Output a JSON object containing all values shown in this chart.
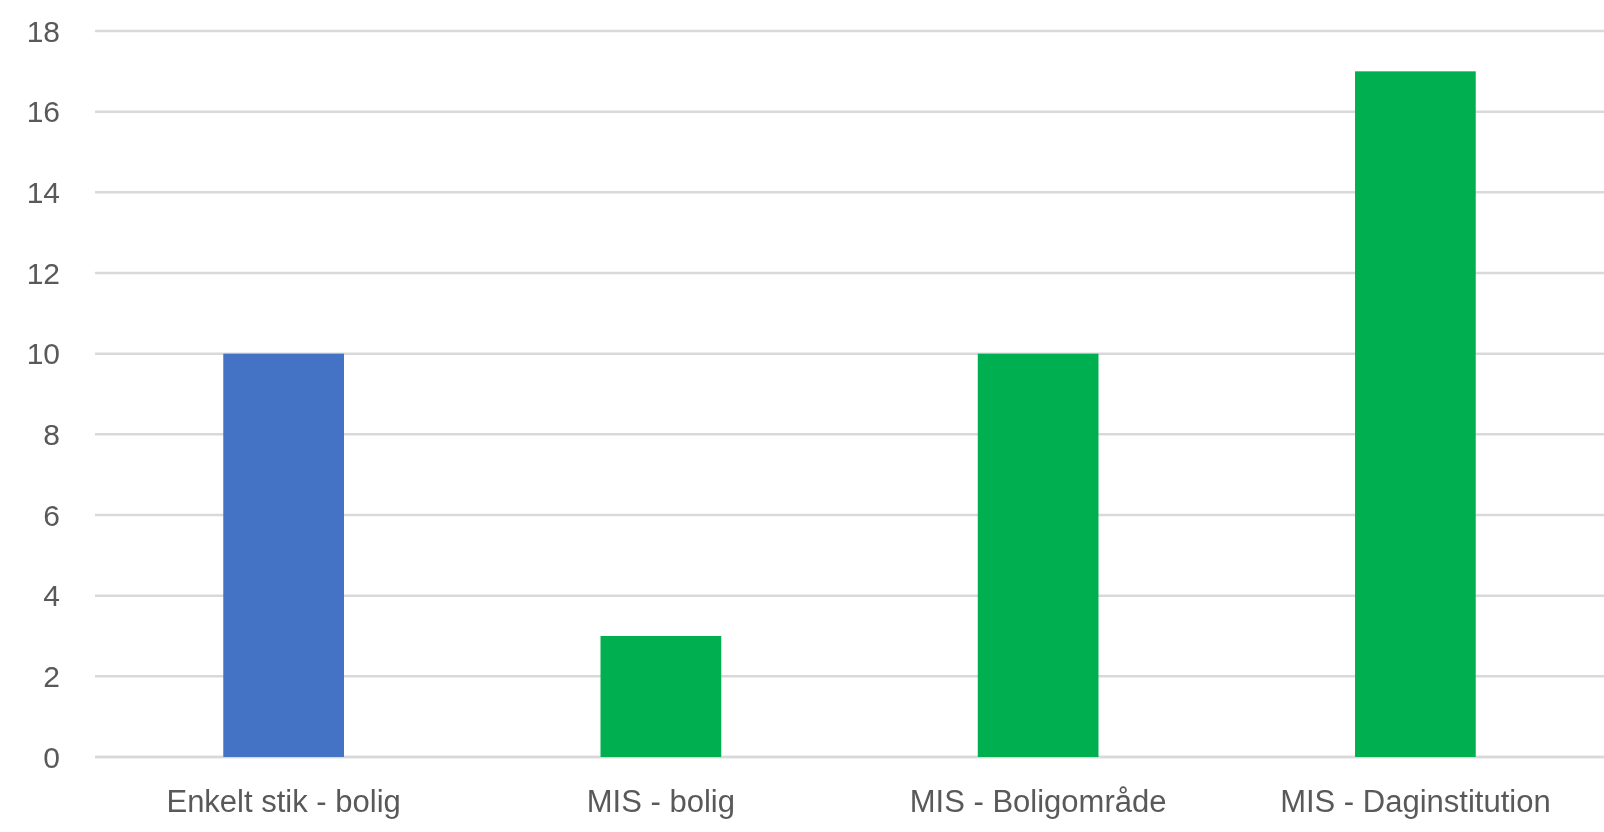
{
  "chart_data": {
    "type": "bar",
    "categories": [
      "Enkelt stik - bolig",
      "MIS - bolig",
      "MIS - Boligområde",
      "MIS - Daginstitution"
    ],
    "values": [
      10,
      3,
      10,
      17
    ],
    "colors": [
      "#4472c4",
      "#00b050",
      "#00b050",
      "#00b050"
    ],
    "ylim": [
      0,
      18
    ],
    "yticks": [
      0,
      2,
      4,
      6,
      8,
      10,
      12,
      14,
      16,
      18
    ],
    "grid": "y"
  }
}
